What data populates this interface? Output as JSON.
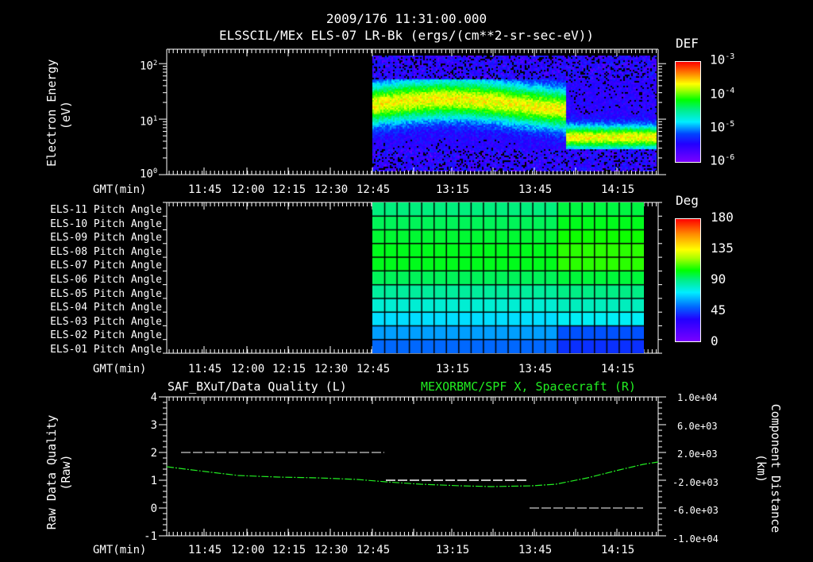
{
  "header": {
    "timestamp": "2009/176 11:31:00.000",
    "title": "ELSSCIL/MEx ELS-07 LR-Bk  (ergs/(cm**2-sr-sec-eV))"
  },
  "time_axis": {
    "label": "GMT(min)",
    "ticks_panel12": [
      "11:45",
      "12:00",
      "12:15",
      "12:30",
      "12:45",
      "13:15",
      "13:45",
      "14:15"
    ],
    "ticks_panel3": [
      "11:45",
      "12:00",
      "12:15",
      "12:30",
      "12:45",
      "13:15",
      "13:45",
      "14:15"
    ]
  },
  "panel1": {
    "ylabel_line1": "Electron Energy",
    "ylabel_line2": "(eV)",
    "yticks": [
      "10^2",
      "10^1",
      "10^0"
    ],
    "colorbar": {
      "title": "DEF",
      "ticks": [
        "10^-3",
        "10^-4",
        "10^-5",
        "10^-6"
      ]
    }
  },
  "panel2": {
    "rows": [
      "ELS-11 Pitch Angle",
      "ELS-10 Pitch Angle",
      "ELS-09 Pitch Angle",
      "ELS-08 Pitch Angle",
      "ELS-07 Pitch Angle",
      "ELS-06 Pitch Angle",
      "ELS-05 Pitch Angle",
      "ELS-04 Pitch Angle",
      "ELS-03 Pitch Angle",
      "ELS-02 Pitch Angle",
      "ELS-01 Pitch Angle"
    ],
    "colorbar": {
      "title": "Deg",
      "ticks": [
        "180",
        "135",
        "90",
        "45",
        "0"
      ]
    }
  },
  "panel3": {
    "left_title": "SAF_BXuT/Data Quality (L)",
    "right_title": "MEXORBMC/SPF X, Spacecraft (R)",
    "ylabel_left_line1": "Raw Data Quality",
    "ylabel_left_line2": "(Raw)",
    "yticks_left": [
      "4",
      "3",
      "2",
      "1",
      "0",
      "-1"
    ],
    "ylabel_right_line1": "Component Distance",
    "ylabel_right_line2": "(km)",
    "yticks_right": [
      "1.0e+04",
      "6.0e+03",
      "2.0e+03",
      "-2.0e+03",
      "-6.0e+03",
      "-1.0e+04"
    ]
  },
  "colors": {
    "background": "#000000",
    "axis": "#ffffff",
    "spacecraft_line": "#22ee22",
    "quality_line": "#ffffff"
  },
  "chart_data": [
    {
      "type": "heatmap",
      "title": "ELSSCIL/MEx ELS-07 LR-Bk (ergs/(cm**2-sr-sec-eV))",
      "xlabel": "GMT(min)",
      "ylabel": "Electron Energy (eV)",
      "yscale": "log",
      "ylim": [
        1,
        180
      ],
      "x_ticks": [
        "11:45",
        "12:00",
        "12:15",
        "12:30",
        "12:45",
        "13:15",
        "13:45",
        "14:15"
      ],
      "data_start": "12:45",
      "colorbar": {
        "label": "DEF",
        "scale": "log",
        "range": [
          1e-06,
          0.001
        ]
      },
      "description": "Peak flux ~1e-4 centred near 20-30 eV from 12:45 to ~13:55, dropping to ~6-8 eV band after 13:55"
    },
    {
      "type": "heatmap",
      "title": "ELS Pitch Angles",
      "xlabel": "GMT(min)",
      "rows": [
        "ELS-11",
        "ELS-10",
        "ELS-09",
        "ELS-08",
        "ELS-07",
        "ELS-06",
        "ELS-05",
        "ELS-04",
        "ELS-03",
        "ELS-02",
        "ELS-01"
      ],
      "row_values_deg_approx": [
        95,
        100,
        105,
        108,
        108,
        100,
        90,
        80,
        70,
        62,
        55
      ],
      "data_start": "12:45",
      "colorbar": {
        "label": "Deg",
        "range": [
          0,
          180
        ],
        "ticks": [
          0,
          45,
          90,
          135,
          180
        ]
      }
    },
    {
      "type": "line",
      "title": "SAF_BXuT/Data Quality (L) ; MEXORBMC/SPF X, Spacecraft (R)",
      "xlabel": "GMT(min)",
      "series": [
        {
          "name": "Data Quality (L)",
          "axis": "left",
          "segments": [
            {
              "x": [
                "11:37",
                "12:47"
              ],
              "y": 2
            },
            {
              "x": [
                "12:47",
                "13:44"
              ],
              "y": 1
            },
            {
              "x": [
                "13:44",
                "14:24"
              ],
              "y": 0
            }
          ]
        },
        {
          "name": "SPF X, Spacecraft (R)",
          "axis": "right",
          "x": [
            "11:30",
            "11:45",
            "12:00",
            "12:15",
            "12:30",
            "12:45",
            "13:00",
            "13:15",
            "13:30",
            "13:45",
            "14:00",
            "14:15",
            "14:30"
          ],
          "y": [
            -600,
            -1000,
            -1700,
            -2400,
            -3000,
            -3600,
            -4100,
            -4400,
            -4500,
            -4300,
            -3200,
            -1500,
            400
          ]
        }
      ],
      "ylim_left": [
        -1,
        4
      ],
      "ylim_right": [
        -10000,
        10000
      ]
    }
  ]
}
